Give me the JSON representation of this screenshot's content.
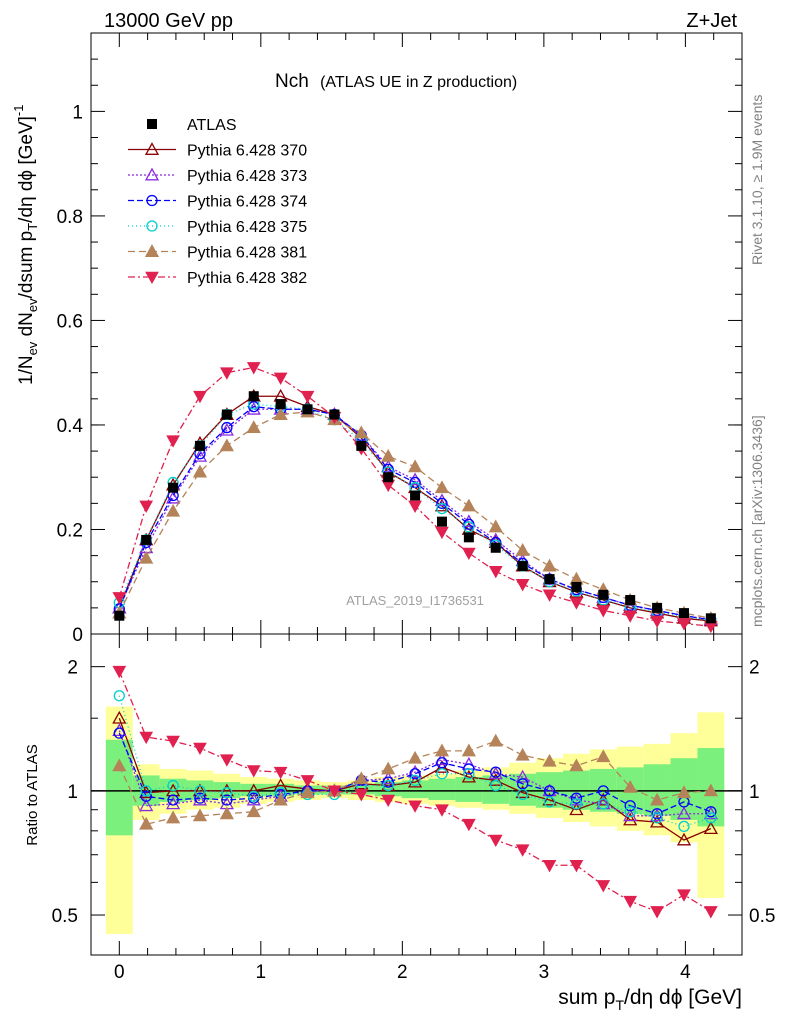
{
  "header": {
    "left": "13000 GeV pp",
    "right": "Z+Jet"
  },
  "plot_title": {
    "main": "Nch",
    "sub": "(ATLAS UE in Z production)"
  },
  "side_labels": {
    "rivet": "Rivet 3.1.10, ≥ 1.9M events",
    "mcplots": "mcplots.cern.ch [arXiv:1306.3436]"
  },
  "analysis_label": "ATLAS_2019_I1736531",
  "main_axis": {
    "ylabel": "1/N_ev dN_ev/dsum p_T/dη dϕ [GeV]^-1",
    "ylim": [
      0,
      1.15
    ],
    "yticks": [
      "0",
      "0.2",
      "0.4",
      "0.6",
      "0.8",
      "1"
    ]
  },
  "ratio_axis": {
    "ylabel": "Ratio to ATLAS",
    "yticks_left": [
      "0.5",
      "1",
      "2"
    ],
    "yticks_right": [
      "0.5",
      "1",
      "2"
    ]
  },
  "x_axis": {
    "xlabel": "sum p_T/dη dϕ [GeV]",
    "xlim": [
      -0.2,
      4.4
    ],
    "xticks": [
      "0",
      "1",
      "2",
      "3",
      "4"
    ]
  },
  "legend": [
    {
      "label": "ATLAS",
      "color": "#000000",
      "marker": "square"
    },
    {
      "label": "Pythia 6.428 370",
      "color": "#8b0000",
      "marker": "triangle-open"
    },
    {
      "label": "Pythia 6.428 373",
      "color": "#8a2be2",
      "marker": "triangle-open"
    },
    {
      "label": "Pythia 6.428 374",
      "color": "#0000ff",
      "marker": "circle-open"
    },
    {
      "label": "Pythia 6.428 375",
      "color": "#00cfcf",
      "marker": "circle-open"
    },
    {
      "label": "Pythia 6.428 381",
      "color": "#b5835a",
      "marker": "triangle-filled"
    },
    {
      "label": "Pythia 6.428 382",
      "color": "#e0204f",
      "marker": "triangle-down-filled"
    }
  ],
  "chart_data": {
    "type": "scatter",
    "x": [
      0.0,
      0.19,
      0.38,
      0.57,
      0.76,
      0.95,
      1.14,
      1.33,
      1.52,
      1.71,
      1.9,
      2.09,
      2.28,
      2.47,
      2.66,
      2.85,
      3.04,
      3.23,
      3.42,
      3.61,
      3.8,
      3.99,
      4.18
    ],
    "data_series": {
      "name": "ATLAS",
      "values": [
        0.035,
        0.18,
        0.28,
        0.36,
        0.42,
        0.455,
        0.44,
        0.43,
        0.42,
        0.36,
        0.3,
        0.265,
        0.215,
        0.185,
        0.165,
        0.13,
        0.105,
        0.09,
        0.075,
        0.065,
        0.05,
        0.04,
        0.03
      ]
    },
    "mc_series": [
      {
        "name": "Pythia 6.428 370",
        "values": [
          0.05,
          0.18,
          0.285,
          0.365,
          0.42,
          0.455,
          0.455,
          0.435,
          0.42,
          0.375,
          0.31,
          0.28,
          0.245,
          0.2,
          0.175,
          0.13,
          0.1,
          0.08,
          0.065,
          0.05,
          0.04,
          0.03,
          0.025
        ]
      },
      {
        "name": "Pythia 6.428 373",
        "values": [
          0.05,
          0.165,
          0.26,
          0.34,
          0.39,
          0.43,
          0.43,
          0.43,
          0.42,
          0.38,
          0.32,
          0.295,
          0.255,
          0.215,
          0.18,
          0.14,
          0.105,
          0.085,
          0.07,
          0.055,
          0.045,
          0.035,
          0.028
        ]
      },
      {
        "name": "Pythia 6.428 374",
        "values": [
          0.048,
          0.175,
          0.265,
          0.345,
          0.395,
          0.435,
          0.43,
          0.43,
          0.42,
          0.38,
          0.315,
          0.29,
          0.25,
          0.21,
          0.175,
          0.135,
          0.105,
          0.085,
          0.07,
          0.055,
          0.045,
          0.035,
          0.027
        ]
      },
      {
        "name": "Pythia 6.428 375",
        "values": [
          0.06,
          0.18,
          0.29,
          0.36,
          0.42,
          0.44,
          0.435,
          0.43,
          0.41,
          0.37,
          0.31,
          0.28,
          0.24,
          0.205,
          0.17,
          0.13,
          0.1,
          0.082,
          0.065,
          0.052,
          0.042,
          0.033,
          0.026
        ]
      },
      {
        "name": "Pythia 6.428 381",
        "values": [
          0.04,
          0.145,
          0.235,
          0.31,
          0.36,
          0.395,
          0.42,
          0.425,
          0.41,
          0.385,
          0.34,
          0.32,
          0.28,
          0.245,
          0.205,
          0.16,
          0.13,
          0.105,
          0.085,
          0.065,
          0.05,
          0.04,
          0.03
        ]
      },
      {
        "name": "Pythia 6.428 382",
        "values": [
          0.07,
          0.245,
          0.37,
          0.455,
          0.5,
          0.51,
          0.49,
          0.455,
          0.415,
          0.355,
          0.285,
          0.245,
          0.195,
          0.155,
          0.12,
          0.095,
          0.075,
          0.06,
          0.045,
          0.035,
          0.025,
          0.02,
          0.015
        ]
      }
    ],
    "ratio": {
      "ylim_log": [
        0.4,
        2.4
      ],
      "x": [
        0.0,
        0.19,
        0.38,
        0.57,
        0.76,
        0.95,
        1.14,
        1.33,
        1.52,
        1.71,
        1.9,
        2.09,
        2.28,
        2.47,
        2.66,
        2.85,
        3.04,
        3.23,
        3.42,
        3.61,
        3.8,
        3.99,
        4.18
      ],
      "band_inner": [
        [
          0.78,
          1.33
        ],
        [
          0.92,
          1.09
        ],
        [
          0.94,
          1.07
        ],
        [
          0.95,
          1.06
        ],
        [
          0.96,
          1.05
        ],
        [
          0.97,
          1.04
        ],
        [
          0.97,
          1.04
        ],
        [
          0.98,
          1.03
        ],
        [
          0.98,
          1.03
        ],
        [
          0.98,
          1.04
        ],
        [
          0.97,
          1.05
        ],
        [
          0.96,
          1.06
        ],
        [
          0.95,
          1.07
        ],
        [
          0.94,
          1.08
        ],
        [
          0.93,
          1.09
        ],
        [
          0.92,
          1.1
        ],
        [
          0.91,
          1.11
        ],
        [
          0.9,
          1.12
        ],
        [
          0.89,
          1.13
        ],
        [
          0.88,
          1.14
        ],
        [
          0.87,
          1.16
        ],
        [
          0.85,
          1.2
        ],
        [
          0.82,
          1.27
        ]
      ],
      "band_outer": [
        [
          0.45,
          1.6
        ],
        [
          0.85,
          1.16
        ],
        [
          0.88,
          1.13
        ],
        [
          0.9,
          1.12
        ],
        [
          0.91,
          1.1
        ],
        [
          0.93,
          1.08
        ],
        [
          0.94,
          1.07
        ],
        [
          0.95,
          1.06
        ],
        [
          0.96,
          1.05
        ],
        [
          0.95,
          1.06
        ],
        [
          0.94,
          1.08
        ],
        [
          0.93,
          1.09
        ],
        [
          0.92,
          1.1
        ],
        [
          0.91,
          1.12
        ],
        [
          0.9,
          1.14
        ],
        [
          0.88,
          1.17
        ],
        [
          0.86,
          1.2
        ],
        [
          0.84,
          1.23
        ],
        [
          0.82,
          1.26
        ],
        [
          0.8,
          1.28
        ],
        [
          0.78,
          1.3
        ],
        [
          0.75,
          1.38
        ],
        [
          0.55,
          1.55
        ]
      ],
      "series": [
        {
          "name": "Pythia 6.428 370",
          "values": [
            1.5,
            0.99,
            1.0,
            1.0,
            1.0,
            1.0,
            1.03,
            1.01,
            1.0,
            1.04,
            1.03,
            1.05,
            1.14,
            1.08,
            1.06,
            0.99,
            0.95,
            0.9,
            0.95,
            0.85,
            0.84,
            0.76,
            0.81
          ]
        },
        {
          "name": "Pythia 6.428 373",
          "values": [
            1.4,
            0.92,
            0.93,
            0.95,
            0.93,
            0.95,
            0.97,
            1.0,
            1.0,
            1.06,
            1.07,
            1.11,
            1.19,
            1.16,
            1.1,
            1.08,
            1.0,
            0.95,
            0.93,
            0.87,
            0.87,
            0.88,
            0.88
          ]
        },
        {
          "name": "Pythia 6.428 374",
          "values": [
            1.38,
            0.97,
            0.95,
            0.96,
            0.95,
            0.96,
            0.98,
            1.0,
            1.0,
            1.06,
            1.05,
            1.1,
            1.17,
            1.13,
            1.11,
            1.04,
            1.0,
            0.96,
            1.0,
            0.92,
            0.88,
            0.94,
            0.89
          ]
        },
        {
          "name": "Pythia 6.428 375",
          "values": [
            1.7,
            1.0,
            1.03,
            1.0,
            0.99,
            0.97,
            0.99,
            0.98,
            0.98,
            1.03,
            1.03,
            1.06,
            1.1,
            1.1,
            1.03,
            0.98,
            0.94,
            0.93,
            0.93,
            0.89,
            0.86,
            0.82,
            0.86
          ]
        },
        {
          "name": "Pythia 6.428 381",
          "values": [
            1.15,
            0.83,
            0.86,
            0.87,
            0.88,
            0.89,
            0.95,
            0.99,
            1.0,
            1.07,
            1.13,
            1.2,
            1.25,
            1.25,
            1.32,
            1.22,
            1.18,
            1.15,
            1.21,
            1.02,
            0.95,
            0.99,
            1.0
          ]
        },
        {
          "name": "Pythia 6.428 382",
          "values": [
            1.95,
            1.35,
            1.32,
            1.27,
            1.19,
            1.12,
            1.11,
            1.06,
            1.0,
            0.98,
            0.95,
            0.92,
            0.9,
            0.83,
            0.76,
            0.72,
            0.66,
            0.66,
            0.59,
            0.54,
            0.51,
            0.56,
            0.51
          ]
        }
      ]
    }
  }
}
